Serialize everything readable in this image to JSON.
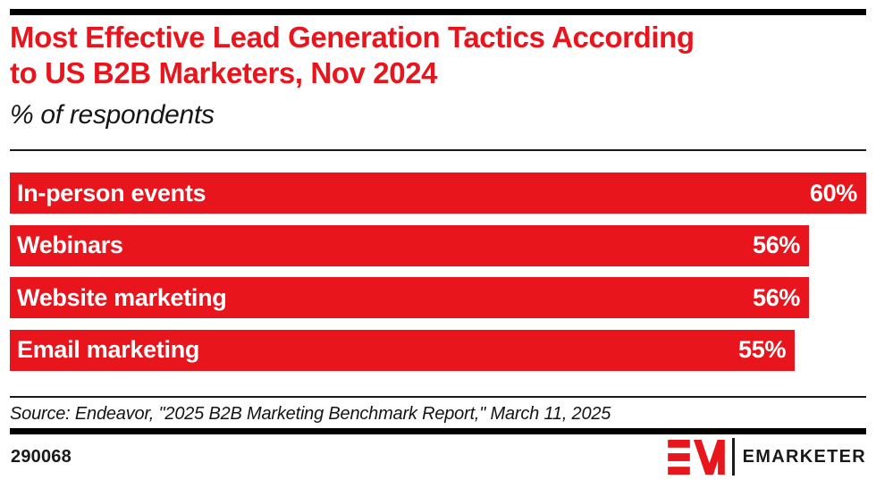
{
  "colors": {
    "accent_red": "#E8151D",
    "rule_black": "#000000",
    "bar_text_white": "#FFFFFF"
  },
  "header": {
    "title_lines": [
      "Most Effective Lead Generation Tactics According",
      "to US B2B Marketers, Nov 2024"
    ],
    "subtitle": "% of respondents"
  },
  "chart_data": {
    "type": "bar",
    "orientation": "horizontal",
    "title": "Most Effective Lead Generation Tactics According to US B2B Marketers, Nov 2024",
    "subtitle": "% of respondents",
    "categories": [
      "In-person events",
      "Webinars",
      "Website marketing",
      "Email marketing"
    ],
    "values": [
      60,
      56,
      56,
      55
    ],
    "value_labels": [
      "60%",
      "56%",
      "56%",
      "55%"
    ],
    "unit": "%",
    "xlim": [
      0,
      60
    ],
    "bar_color": "#E8151D",
    "grid": false,
    "legend": false,
    "value_label_position": "inside-end",
    "category_label_position": "inside-start"
  },
  "footer": {
    "source_line": "Source: Endeavor, \"2025 B2B Marketing Benchmark Report,\" March 11, 2025",
    "chart_id": "290068",
    "brand_name": "EMARKETER"
  }
}
